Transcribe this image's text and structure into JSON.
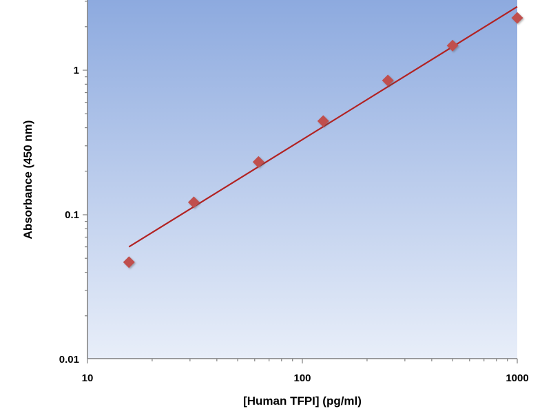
{
  "chart_data": {
    "type": "scatter",
    "title": "",
    "xlabel": "[Human TFPI] (pg/ml)",
    "ylabel": "Absorbance (450 nm)",
    "x_scale": "log",
    "y_scale": "log",
    "xlim": [
      10,
      1000
    ],
    "ylim": [
      0.01,
      3
    ],
    "x_ticks": [
      {
        "value": 10,
        "label": "10"
      },
      {
        "value": 100,
        "label": "100"
      },
      {
        "value": 1000,
        "label": "1000"
      }
    ],
    "y_ticks": [
      {
        "value": 0.01,
        "label": "0.01"
      },
      {
        "value": 0.1,
        "label": "0.1"
      },
      {
        "value": 1,
        "label": "1"
      }
    ],
    "grid": false,
    "legend": "none",
    "series": [
      {
        "marker": "diamond",
        "color": "#C0504D",
        "points": [
          {
            "x": 15.6,
            "y": 0.047
          },
          {
            "x": 31.25,
            "y": 0.122
          },
          {
            "x": 62.5,
            "y": 0.232
          },
          {
            "x": 125,
            "y": 0.445
          },
          {
            "x": 250,
            "y": 0.85
          },
          {
            "x": 500,
            "y": 1.48
          },
          {
            "x": 1000,
            "y": 2.3
          }
        ]
      }
    ],
    "fit_line": {
      "color": "#B22222",
      "start": {
        "x": 15.6,
        "y": 0.06
      },
      "end": {
        "x": 1000,
        "y": 2.75
      }
    },
    "background_gradient": [
      "#8DAADF",
      "#E8EEF9"
    ]
  }
}
